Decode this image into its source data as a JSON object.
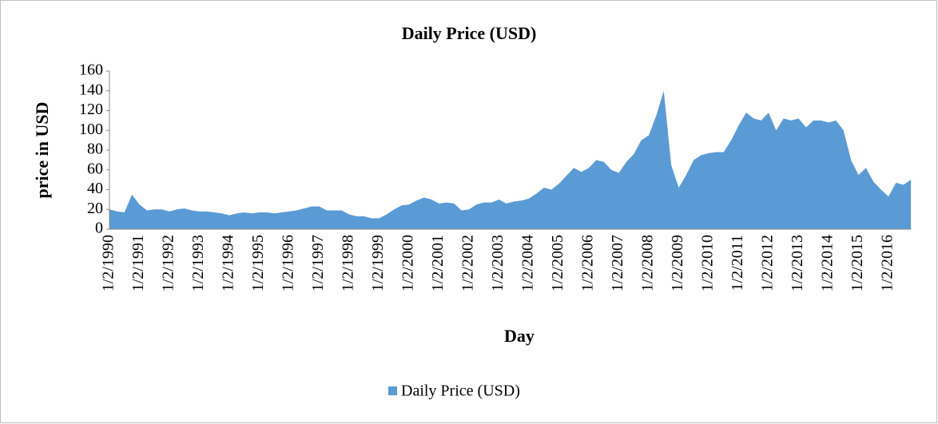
{
  "chart_data": {
    "type": "area",
    "title": "Daily Price (USD)",
    "x_label": "Day",
    "y_label": "price in USD",
    "categories": [
      "1/2/1990",
      null,
      null,
      null,
      "1/2/1991",
      null,
      null,
      null,
      "1/2/1992",
      null,
      null,
      null,
      "1/2/1993",
      null,
      null,
      null,
      "1/2/1994",
      null,
      null,
      null,
      "1/2/1995",
      null,
      null,
      null,
      "1/2/1996",
      null,
      null,
      null,
      "1/2/1997",
      null,
      null,
      null,
      "1/2/1998",
      null,
      null,
      null,
      "1/2/1999",
      null,
      null,
      null,
      "1/2/2000",
      null,
      null,
      null,
      "1/2/2001",
      null,
      null,
      null,
      "1/2/2002",
      null,
      null,
      null,
      "1/2/2003",
      null,
      null,
      null,
      "1/2/2004",
      null,
      null,
      null,
      "1/2/2005",
      null,
      null,
      null,
      "1/2/2006",
      null,
      null,
      null,
      "1/2/2007",
      null,
      null,
      null,
      "1/2/2008",
      null,
      null,
      null,
      "1/2/2009",
      null,
      null,
      null,
      "1/2/2010",
      null,
      null,
      null,
      "1/2/2011",
      null,
      null,
      null,
      "1/2/2012",
      null,
      null,
      null,
      "1/2/2013",
      null,
      null,
      null,
      "1/2/2014",
      null,
      null,
      null,
      "1/2/2015",
      null,
      null,
      null,
      "1/2/2016",
      null,
      null,
      null
    ],
    "series": [
      {
        "name": "Daily Price (USD)",
        "color": "#5b9bd5",
        "values": [
          20,
          18,
          17,
          35,
          25,
          19,
          20,
          20,
          18,
          20,
          21,
          19,
          18,
          18,
          17,
          16,
          14,
          16,
          17,
          16,
          17,
          17,
          16,
          17,
          18,
          19,
          21,
          23,
          23,
          19,
          19,
          19,
          15,
          13,
          13,
          11,
          11,
          15,
          20,
          24,
          25,
          29,
          32,
          30,
          26,
          27,
          26,
          19,
          20,
          25,
          27,
          27,
          30,
          26,
          28,
          29,
          31,
          36,
          42,
          40,
          46,
          54,
          62,
          58,
          62,
          70,
          68,
          60,
          57,
          68,
          76,
          90,
          95,
          115,
          140,
          65,
          42,
          55,
          70,
          75,
          77,
          78,
          78,
          90,
          105,
          118,
          112,
          110,
          118,
          100,
          112,
          110,
          112,
          103,
          110,
          110,
          108,
          110,
          100,
          70,
          55,
          62,
          48,
          40,
          33,
          47,
          45,
          50
        ]
      }
    ],
    "ylim": [
      0,
      160
    ],
    "yticks": [
      0,
      20,
      40,
      60,
      80,
      100,
      120,
      140,
      160
    ],
    "legend": "bottom"
  }
}
